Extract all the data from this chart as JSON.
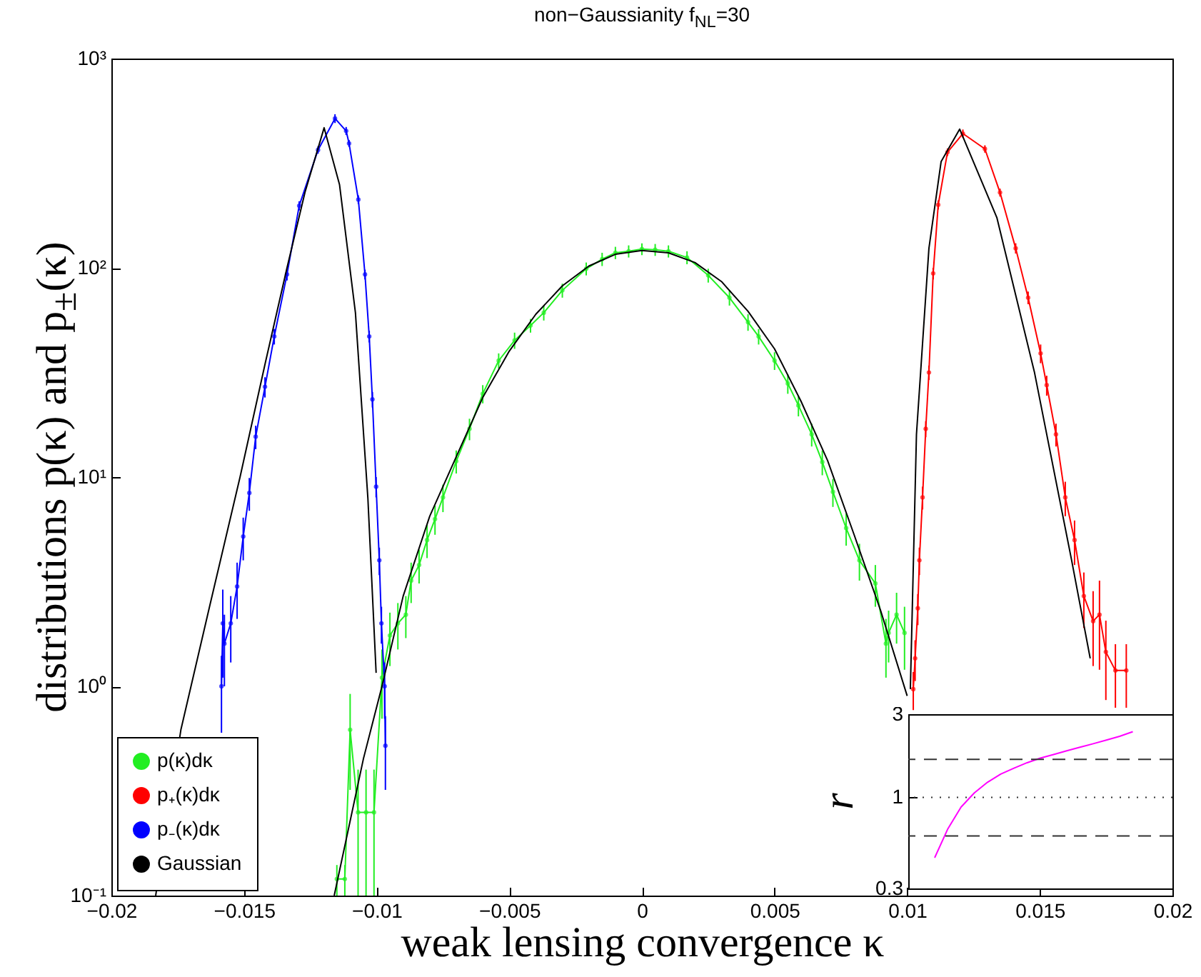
{
  "chart_data": [
    {
      "type": "line",
      "title": "non−Gaussianity f$_{NL}$=30",
      "xlabel": "weak lensing convergence κ",
      "ylabel": "distributions p(κ) and p$_{±}$(κ)",
      "log": "y",
      "xlim": [
        -0.02,
        0.02
      ],
      "xticks": [
        -0.02,
        -0.015,
        -0.01,
        -0.005,
        0,
        0.005,
        0.01,
        0.015,
        0.02
      ],
      "ylim": [
        0.1,
        1000
      ],
      "yticks": [
        {
          "value": 0.1,
          "label": "10⁻¹"
        },
        {
          "value": 1,
          "label": "10⁰"
        },
        {
          "value": 10,
          "label": "10¹"
        },
        {
          "value": 100,
          "label": "10²"
        },
        {
          "value": 1000,
          "label": "10³"
        }
      ],
      "legend": "bottom left",
      "grid": false,
      "series": [
        {
          "name": "p(κ)dκ",
          "color": "#22ee22",
          "marker": "circle",
          "x": [
            -0.0115,
            -0.0112,
            -0.011,
            -0.0107,
            -0.0104,
            -0.0101,
            -0.0098,
            -0.0095,
            -0.0092,
            -0.0089,
            -0.0087,
            -0.0084,
            -0.0081,
            -0.0078,
            -0.0075,
            -0.007,
            -0.0065,
            -0.006,
            -0.0054,
            -0.0048,
            -0.0042,
            -0.0037,
            -0.003,
            -0.0021,
            -0.0015,
            -0.001,
            -0.0005,
            0,
            0.0005,
            0.001,
            0.0017,
            0.0025,
            0.0033,
            0.004,
            0.0044,
            0.005,
            0.0055,
            0.0059,
            0.0064,
            0.0068,
            0.0072,
            0.0077,
            0.0082,
            0.0088,
            0.0092,
            0.0093,
            0.0096,
            0.0099
          ],
          "values": [
            0.12,
            0.12,
            0.62,
            0.25,
            0.25,
            0.25,
            1.1,
            1.75,
            2,
            2.2,
            3.2,
            3.8,
            5,
            6.3,
            8,
            11.9,
            17,
            25,
            36,
            45,
            53,
            61,
            78,
            99,
            110,
            118,
            120,
            123,
            122,
            120,
            112,
            92,
            72,
            55,
            47,
            36,
            28,
            22,
            16,
            11.8,
            8.5,
            5.7,
            4,
            3.1,
            1.6,
            1.8,
            2.2,
            1.8
          ],
          "errors": [
            0.02,
            0.02,
            0.3,
            0.15,
            0.15,
            0.15,
            0.4,
            0.5,
            0.5,
            0.5,
            0.7,
            0.7,
            0.9,
            1,
            1.2,
            1.5,
            2,
            2.5,
            3,
            4,
            4,
            5,
            6,
            7,
            8,
            8,
            8,
            8,
            8,
            8,
            8,
            7,
            6,
            5,
            4,
            3.5,
            3,
            2.5,
            2,
            1.6,
            1.3,
            1,
            0.8,
            0.7,
            0.5,
            0.5,
            0.6,
            0.6
          ]
        },
        {
          "name": "p₊(κ)dκ",
          "color": "#ff0000",
          "marker": "circle",
          "x": [
            0.01023,
            0.0103,
            0.0104,
            0.01046,
            0.01058,
            0.0107,
            0.01082,
            0.01098,
            0.01117,
            0.01152,
            0.0121,
            0.01293,
            0.0135,
            0.01409,
            0.01456,
            0.01503,
            0.01526,
            0.01561,
            0.01596,
            0.01631,
            0.01666,
            0.01701,
            0.01725,
            0.01749,
            0.01785,
            0.01826
          ],
          "values": [
            0.97,
            1.36,
            2.36,
            4,
            8,
            17,
            31.6,
            94,
            200,
            357,
            438,
            370,
            229,
            124,
            72,
            39,
            27.5,
            16,
            8,
            5,
            2.7,
            2.05,
            2.2,
            1.46,
            1.19,
            1.19
          ],
          "errors": [
            0.2,
            0.3,
            0.4,
            0.6,
            1,
            1.5,
            2.5,
            6,
            10,
            15,
            20,
            15,
            10,
            7,
            5,
            4,
            3,
            2,
            1.5,
            1.2,
            0.8,
            0.8,
            1,
            0.6,
            0.4,
            0.4
          ]
        },
        {
          "name": "p₋(κ)dκ",
          "color": "#0000ff",
          "marker": "circle",
          "x": [
            -0.01585,
            -0.0158,
            -0.01574,
            -0.0155,
            -0.01526,
            -0.01503,
            -0.0148,
            -0.01456,
            -0.01421,
            -0.01386,
            -0.01338,
            -0.01292,
            -0.01221,
            -0.01157,
            -0.01115,
            -0.01104,
            -0.01069,
            -0.01044,
            -0.01028,
            -0.01016,
            -0.01002,
            -0.0099,
            -0.00982,
            -0.0097,
            -0.00967
          ],
          "values": [
            1.0,
            2.0,
            1.6,
            2,
            3,
            5.2,
            8.4,
            15.6,
            27,
            47,
            93,
            198,
            366,
            517,
            451,
            393,
            212,
            93,
            47,
            23.5,
            9,
            4,
            2,
            1.0,
            0.52
          ],
          "errors": [
            0.4,
            0.9,
            0.6,
            0.7,
            0.9,
            1.2,
            1.5,
            2,
            3,
            4,
            6,
            10,
            15,
            25,
            20,
            15,
            10,
            5,
            3,
            2,
            1,
            0.6,
            0.4,
            0.3,
            0.2
          ]
        },
        {
          "name": "Gaussian",
          "color": "#000000",
          "marker": "none",
          "x": [
            -0.01833,
            -0.01738,
            -0.0163,
            -0.01515,
            -0.0142,
            -0.01338,
            -0.0127,
            -0.01198,
            -0.0114,
            -0.0108,
            -0.01033,
            -0.01002,
            null,
            -0.0116,
            -0.0105,
            -0.0098,
            -0.009,
            -0.008,
            -0.007,
            -0.006,
            -0.005,
            -0.004,
            -0.003,
            -0.002,
            -0.001,
            0,
            0.001,
            0.002,
            0.003,
            0.004,
            0.005,
            0.006,
            0.007,
            0.008,
            0.009,
            0.01,
            null,
            0.01012,
            0.01035,
            0.01082,
            0.01128,
            0.01198,
            0.01338,
            0.0148,
            0.0162,
            0.0169
          ],
          "values": [
            0.1,
            0.62,
            2.4,
            10,
            35,
            100,
            230,
            467,
            250,
            61,
            7.9,
            1.16,
            null,
            0.1,
            0.45,
            1.0,
            2.7,
            6.5,
            12.5,
            24,
            40,
            60,
            82,
            102,
            116,
            121,
            118,
            106,
            86,
            62,
            41,
            23,
            12,
            5.3,
            2.3,
            0.9,
            null,
            0.97,
            16,
            124,
            322,
            460,
            174,
            31.6,
            4,
            1.36
          ]
        }
      ]
    },
    {
      "type": "line",
      "ylabel": "r",
      "log": "y",
      "categories": [
        null,
        null,
        null,
        null,
        null,
        null,
        null,
        null,
        null,
        null,
        null,
        null,
        null,
        null,
        null,
        null,
        null,
        null,
        null,
        null,
        null
      ],
      "ylim": [
        0.3,
        3
      ],
      "yticks": [
        0.3,
        1,
        3
      ],
      "tick_labels": "y",
      "grid": false,
      "series": [
        {
          "color": "#ff00ff",
          "values": [
            null,
            null,
            0.45,
            0.66,
            0.88,
            1.06,
            1.22,
            1.36,
            1.47,
            1.58,
            1.68,
            1.76,
            1.85,
            1.94,
            2.03,
            2.13,
            2.24,
            2.38,
            null,
            null,
            null
          ]
        }
      ],
      "ref_lines": [
        {
          "axis": "y",
          "value": 1.65,
          "color": "#333333",
          "line_style": "dashed"
        },
        {
          "axis": "y",
          "value": 1,
          "color": "#333333",
          "line_style": "dotted"
        },
        {
          "axis": "y",
          "value": 0.6,
          "color": "#333333",
          "line_style": "dashed"
        }
      ]
    }
  ]
}
